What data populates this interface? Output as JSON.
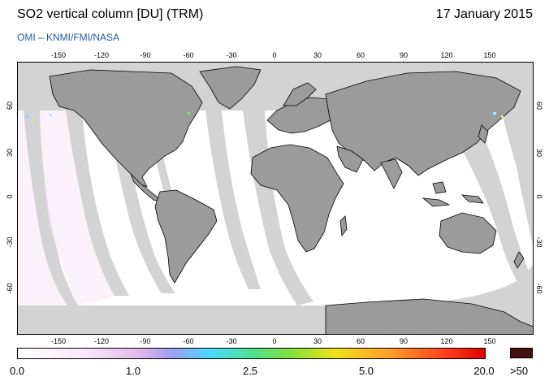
{
  "header": {
    "title": "SO2 vertical column [DU] (TRM)",
    "date": "17 January 2015",
    "subtitle": "OMI  –  KNMI/FMI/NASA"
  },
  "axes": {
    "lon_ticks": [
      "-150",
      "-120",
      "-90",
      "-60",
      "-30",
      "0",
      "30",
      "60",
      "90",
      "120",
      "150"
    ],
    "lat_ticks_left": [
      "60",
      "30",
      "0",
      "-30",
      "-60"
    ],
    "lat_ticks_right": [
      "60",
      "30",
      "0",
      "-30",
      "-60"
    ]
  },
  "colorbar": {
    "labels": [
      "0.0",
      "1.0",
      "2.5",
      "5.0",
      "20.0"
    ],
    "overflow_label": ">50",
    "overflow_color": "#4a0d0d"
  },
  "colors": {
    "land": "#9b9b9b",
    "no_data": "#d3d3d3",
    "low_value": "#ffffff"
  }
}
